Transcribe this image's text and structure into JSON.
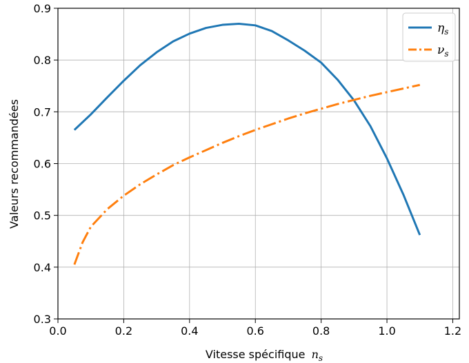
{
  "chart_data": {
    "type": "line",
    "xlabel": "Vitesse spécifique",
    "xlabel_subscript": "n",
    "xlabel_subscript_index": "s",
    "ylabel": "Valeurs recommandées",
    "xlim": [
      0.0,
      1.22
    ],
    "ylim": [
      0.3,
      0.9
    ],
    "x_ticks": [
      "0.0",
      "0.2",
      "0.4",
      "0.6",
      "0.8",
      "1.0",
      "1.2"
    ],
    "y_ticks": [
      "0.3",
      "0.4",
      "0.5",
      "0.6",
      "0.7",
      "0.8",
      "0.9"
    ],
    "grid": true,
    "legend_position": "top-right",
    "series": [
      {
        "name": "η",
        "name_sub": "s",
        "color": "#1f77b4",
        "style": "solid",
        "x": [
          0.05,
          0.1,
          0.15,
          0.2,
          0.25,
          0.3,
          0.35,
          0.4,
          0.45,
          0.5,
          0.55,
          0.6,
          0.65,
          0.7,
          0.75,
          0.8,
          0.85,
          0.9,
          0.95,
          1.0,
          1.05,
          1.1
        ],
        "y": [
          0.665,
          0.695,
          0.728,
          0.76,
          0.79,
          0.815,
          0.836,
          0.851,
          0.862,
          0.868,
          0.87,
          0.867,
          0.856,
          0.838,
          0.818,
          0.795,
          0.762,
          0.722,
          0.672,
          0.61,
          0.54,
          0.462
        ]
      },
      {
        "name": "ν",
        "name_sub": "s",
        "color": "#ff7f0e",
        "style": "dashdot",
        "x": [
          0.05,
          0.075,
          0.1,
          0.15,
          0.2,
          0.25,
          0.3,
          0.35,
          0.4,
          0.45,
          0.5,
          0.55,
          0.6,
          0.65,
          0.7,
          0.75,
          0.8,
          0.85,
          0.9,
          0.95,
          1.0,
          1.05,
          1.1
        ],
        "y": [
          0.405,
          0.448,
          0.478,
          0.512,
          0.538,
          0.56,
          0.579,
          0.597,
          0.612,
          0.626,
          0.64,
          0.653,
          0.665,
          0.676,
          0.687,
          0.697,
          0.706,
          0.715,
          0.723,
          0.731,
          0.738,
          0.745,
          0.752
        ]
      }
    ]
  }
}
